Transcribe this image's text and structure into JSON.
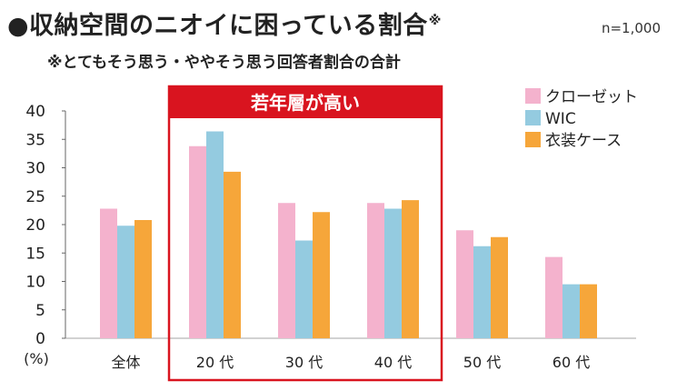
{
  "header": {
    "title": "●収納空間のニオイに困っている割合",
    "title_mark": "※",
    "sample_size": "n=1,000",
    "subtitle": "※とてもそう思う・ややそう思う回答者割合の合計"
  },
  "highlight": {
    "label": "若年層が高い",
    "color": "#d9141f"
  },
  "chart_data": {
    "type": "bar",
    "categories": [
      "全体",
      "20 代",
      "30 代",
      "40 代",
      "50 代",
      "60 代"
    ],
    "series": [
      {
        "name": "クローゼット",
        "color": "#f4b2cd",
        "values": [
          22.8,
          33.8,
          23.8,
          23.8,
          19.0,
          14.3
        ]
      },
      {
        "name": "WIC",
        "color": "#94cbe0",
        "values": [
          19.8,
          36.4,
          17.2,
          22.8,
          16.2,
          9.5
        ]
      },
      {
        "name": "衣装ケース",
        "color": "#f6a63a",
        "values": [
          20.8,
          29.3,
          22.2,
          24.3,
          17.8,
          9.5
        ]
      }
    ],
    "ylim": [
      0,
      40
    ],
    "yticks": [
      0,
      5,
      10,
      15,
      20,
      25,
      30,
      35,
      40
    ],
    "ylabel": "(%)",
    "grid": false,
    "legend_position": "top-right"
  }
}
